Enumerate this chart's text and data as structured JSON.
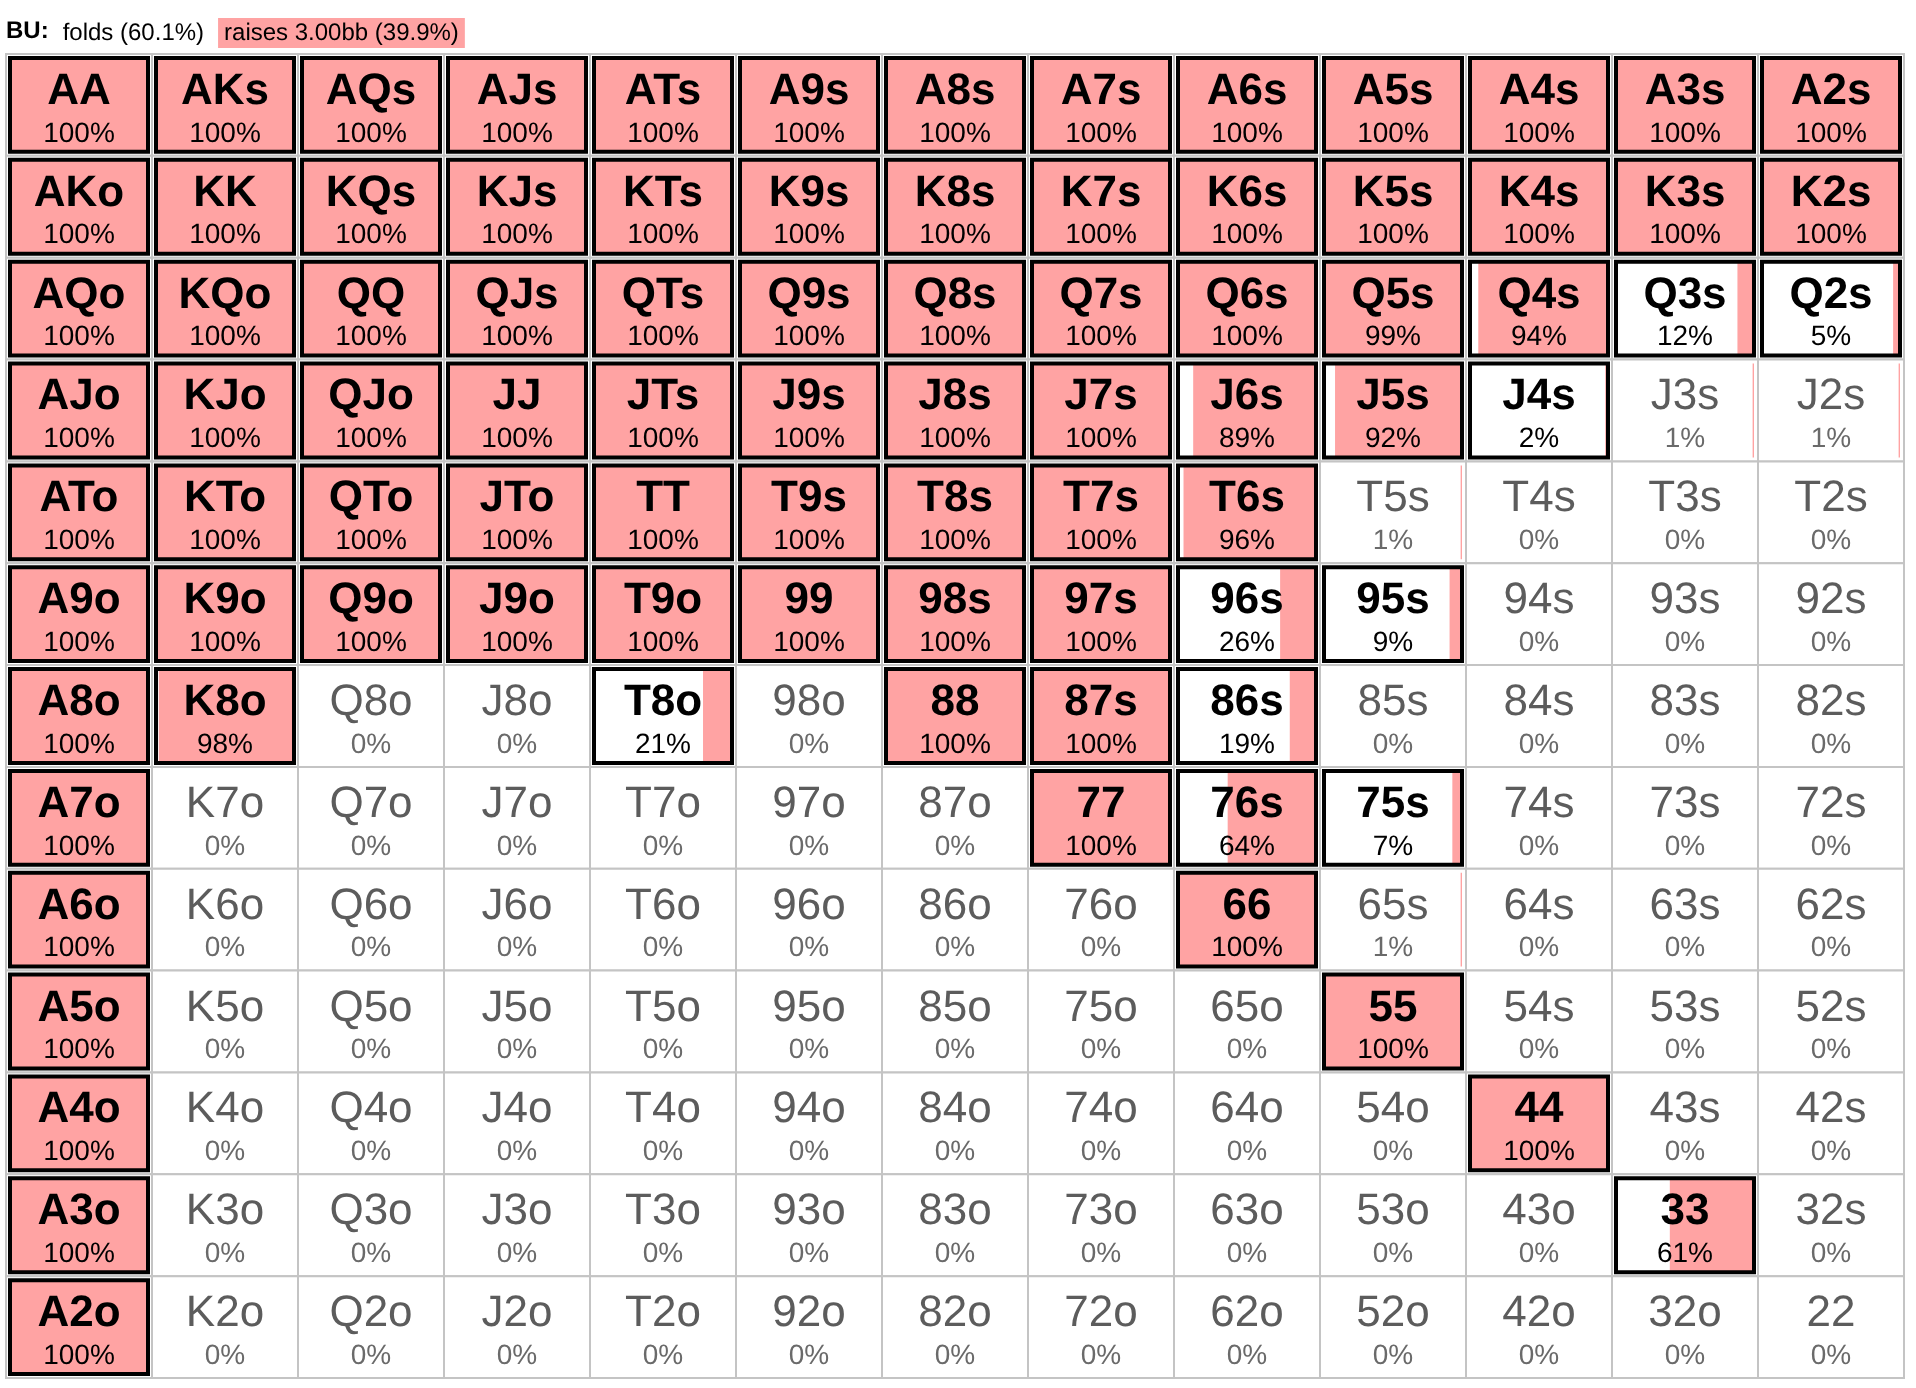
{
  "chart_data": {
    "type": "heatmap",
    "title": "BU:",
    "color": "#ffa3a3",
    "categories": [
      null,
      null,
      null,
      null,
      null,
      null,
      null,
      null,
      null,
      null,
      null,
      null,
      null
    ],
    "y_categories": [
      null,
      null,
      null,
      null,
      null,
      null,
      null,
      null,
      null,
      null,
      null,
      null,
      null
    ],
    "cells": [
      [
        100,
        100,
        100,
        100,
        100,
        100,
        100,
        100,
        100,
        100,
        100,
        100,
        100
      ],
      [
        100,
        100,
        100,
        100,
        100,
        100,
        100,
        100,
        100,
        100,
        100,
        100,
        100
      ],
      [
        100,
        100,
        100,
        100,
        100,
        100,
        100,
        100,
        100,
        99,
        94,
        12,
        5
      ],
      [
        100,
        100,
        100,
        100,
        100,
        100,
        100,
        100,
        89,
        92,
        2,
        1,
        1
      ],
      [
        100,
        100,
        100,
        100,
        100,
        100,
        100,
        100,
        96,
        1,
        0,
        0,
        0
      ],
      [
        100,
        100,
        100,
        100,
        100,
        100,
        100,
        100,
        26,
        9,
        0,
        0,
        0
      ],
      [
        100,
        98,
        0,
        0,
        21,
        0,
        100,
        100,
        19,
        0,
        0,
        0,
        0
      ],
      [
        100,
        0,
        0,
        0,
        0,
        0,
        0,
        100,
        64,
        7,
        0,
        0,
        0
      ],
      [
        100,
        0,
        0,
        0,
        0,
        0,
        0,
        0,
        100,
        1,
        0,
        0,
        0
      ],
      [
        100,
        0,
        0,
        0,
        0,
        0,
        0,
        0,
        0,
        100,
        0,
        0,
        0
      ],
      [
        100,
        0,
        0,
        0,
        0,
        0,
        0,
        0,
        0,
        0,
        100,
        0,
        0
      ],
      [
        100,
        0,
        0,
        0,
        0,
        0,
        0,
        0,
        0,
        0,
        0,
        61,
        0
      ],
      [
        100,
        0,
        0,
        0,
        0,
        0,
        0,
        0,
        0,
        0,
        0,
        0,
        0
      ]
    ],
    "cell_labels": [
      [
        "100%",
        "100%",
        "100%",
        "100%",
        "100%",
        "100%",
        "100%",
        "100%",
        "100%",
        "100%",
        "100%",
        "100%",
        "100%"
      ],
      [
        "100%",
        "100%",
        "100%",
        "100%",
        "100%",
        "100%",
        "100%",
        "100%",
        "100%",
        "100%",
        "100%",
        "100%",
        "100%"
      ],
      [
        "100%",
        "100%",
        "100%",
        "100%",
        "100%",
        "100%",
        "100%",
        "100%",
        "100%",
        "99%",
        "94%",
        "12%",
        "5%"
      ],
      [
        "100%",
        "100%",
        "100%",
        "100%",
        "100%",
        "100%",
        "100%",
        "100%",
        "89%",
        "92%",
        "2%",
        "1%",
        "1%"
      ],
      [
        "100%",
        "100%",
        "100%",
        "100%",
        "100%",
        "100%",
        "100%",
        "100%",
        "96%",
        "1%",
        "0%",
        "0%",
        "0%"
      ],
      [
        "100%",
        "100%",
        "100%",
        "100%",
        "100%",
        "100%",
        "100%",
        "100%",
        "26%",
        "9%",
        "0%",
        "0%",
        "0%"
      ],
      [
        "100%",
        "98%",
        "0%",
        "0%",
        "21%",
        "0%",
        "100%",
        "100%",
        "19%",
        "0%",
        "0%",
        "0%",
        "0%"
      ],
      [
        "100%",
        "0%",
        "0%",
        "0%",
        "0%",
        "0%",
        "0%",
        "100%",
        "64%",
        "7%",
        "0%",
        "0%",
        "0%"
      ],
      [
        "100%",
        "0%",
        "0%",
        "0%",
        "0%",
        "0%",
        "0%",
        "0%",
        "100%",
        "1%",
        "0%",
        "0%",
        "0%"
      ],
      [
        "100%",
        "0%",
        "0%",
        "0%",
        "0%",
        "0%",
        "0%",
        "0%",
        "0%",
        "100%",
        "0%",
        "0%",
        "0%"
      ],
      [
        "100%",
        "0%",
        "0%",
        "0%",
        "0%",
        "0%",
        "0%",
        "0%",
        "0%",
        "0%",
        "100%",
        "0%",
        "0%"
      ],
      [
        "100%",
        "0%",
        "0%",
        "0%",
        "0%",
        "0%",
        "0%",
        "0%",
        "0%",
        "0%",
        "0%",
        "61%",
        "0%"
      ],
      [
        "100%",
        "0%",
        "0%",
        "0%",
        "0%",
        "0%",
        "0%",
        "0%",
        "0%",
        "0%",
        "0%",
        "0%",
        "0%"
      ]
    ],
    "annotations": [
      "folds (60.1%)",
      "raises 3.00bb (39.9%)",
      "AA",
      "AKs",
      "AQs",
      "AJs",
      "ATs",
      "A9s",
      "A8s",
      "A7s",
      "A6s",
      "A5s",
      "A4s",
      "A3s",
      "A2s",
      "AKo",
      "KK",
      "KQs",
      "KJs",
      "KTs",
      "K9s",
      "K8s",
      "K7s",
      "K6s",
      "K5s",
      "K4s",
      "K3s",
      "K2s",
      "AQo",
      "KQo",
      "QQ",
      "QJs",
      "QTs",
      "Q9s",
      "Q8s",
      "Q7s",
      "Q6s",
      "Q5s",
      "Q4s",
      "Q3s",
      "Q2s",
      "AJo",
      "KJo",
      "QJo",
      "JJ",
      "JTs",
      "J9s",
      "J8s",
      "J7s",
      "J6s",
      "J5s",
      "J4s",
      "J3s",
      "J2s",
      "ATo",
      "KTo",
      "QTo",
      "JTo",
      "TT",
      "T9s",
      "T8s",
      "T7s",
      "T6s",
      "T5s",
      "T4s",
      "T3s",
      "T2s",
      "A9o",
      "K9o",
      "Q9o",
      "J9o",
      "T9o",
      "99",
      "98s",
      "97s",
      "96s",
      "95s",
      "94s",
      "93s",
      "92s",
      "A8o",
      "K8o",
      "Q8o",
      "J8o",
      "T8o",
      "98o",
      "88",
      "87s",
      "86s",
      "85s",
      "84s",
      "83s",
      "82s",
      "A7o",
      "K7o",
      "Q7o",
      "J7o",
      "T7o",
      "97o",
      "87o",
      "77",
      "76s",
      "75s",
      "74s",
      "73s",
      "72s",
      "A6o",
      "K6o",
      "Q6o",
      "J6o",
      "T6o",
      "96o",
      "86o",
      "76o",
      "66",
      "65s",
      "64s",
      "63s",
      "62s",
      "A5o",
      "K5o",
      "Q5o",
      "J5o",
      "T5o",
      "95o",
      "85o",
      "75o",
      "65o",
      "55",
      "54s",
      "53s",
      "52s",
      "A4o",
      "K4o",
      "Q4o",
      "J4o",
      "T4o",
      "94o",
      "84o",
      "74o",
      "64o",
      "54o",
      "44",
      "43s",
      "42s",
      "A3o",
      "K3o",
      "Q3o",
      "J3o",
      "T3o",
      "93o",
      "83o",
      "73o",
      "63o",
      "53o",
      "43o",
      "33",
      "32s",
      "A2o",
      "K2o",
      "Q2o",
      "J2o",
      "T2o",
      "92o",
      "82o",
      "72o",
      "62o",
      "52o",
      "42o",
      "32o",
      "22"
    ]
  }
}
